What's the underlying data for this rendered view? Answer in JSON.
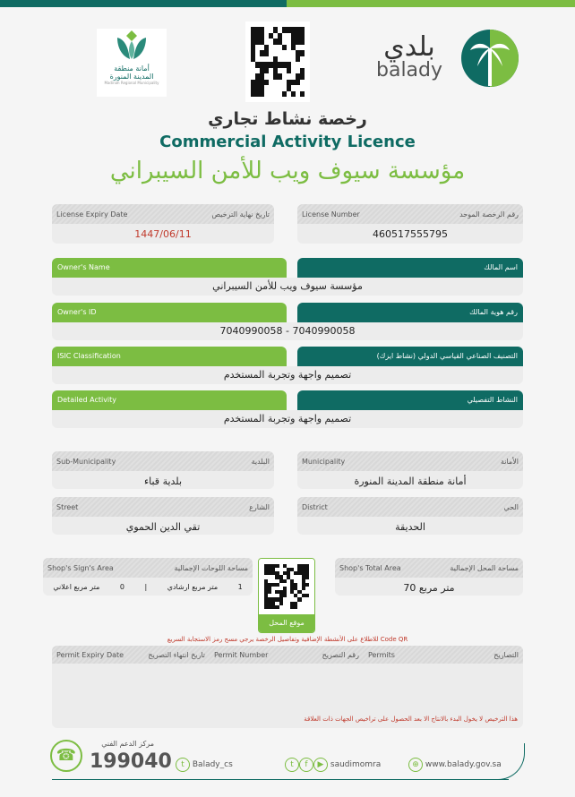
{
  "header": {
    "municipality_logo": {
      "ar_line1": "أمانة منطقة",
      "ar_line2": "المدينة المنورة",
      "en": "Madinah Regional Municipality"
    },
    "balady_logo": {
      "ar": "بلدي",
      "en": "balady"
    }
  },
  "title": {
    "ar": "رخصة نشاط تجاري",
    "en": "Commercial Activity Licence",
    "org": "مؤسسة سيوف ويب للأمن السيبراني"
  },
  "license_expiry": {
    "en": "License Expiry Date",
    "ar": "تاريخ نهاية الترخيص",
    "value": "1447/06/11"
  },
  "license_number": {
    "en": "License Number",
    "ar": "رقم الرخصة الموحد",
    "value": "460517555795"
  },
  "owner_name": {
    "en": "Owner's Name",
    "ar": "اسم المالك",
    "value": "مؤسسة سيوف ويب للأمن السيبراني"
  },
  "owner_id": {
    "en": "Owner's ID",
    "ar": "رقم هوية المالك",
    "value": "7040990058 - 7040990058"
  },
  "isic": {
    "en": "ISIC Classification",
    "ar": "التصنيف الصناعي القياسي الدولي (نشاط ايزك)",
    "value": "تصميم واجهة وتجربة المستخدم"
  },
  "detailed_activity": {
    "en": "Detailed Activity",
    "ar": "النشاط التفصيلي",
    "value": "تصميم واجهة وتجربة المستخدم"
  },
  "sub_municipality": {
    "en": "Sub-Municipality",
    "ar": "البلدية",
    "value": "بلدية قباء"
  },
  "municipality": {
    "en": "Municipality",
    "ar": "الأمانة",
    "value": "أمانة منطقة المدينة المنورة"
  },
  "street": {
    "en": "Street",
    "ar": "الشارع",
    "value": "تقي الدين الحموي"
  },
  "district": {
    "en": "District",
    "ar": "الحي",
    "value": "الحديقة"
  },
  "sign_area": {
    "en": "Shop's Sign's Area",
    "ar": "مساحة اللوحات الإجمالية",
    "guide_value": "1",
    "guide_unit": "متر مربع ارشادي",
    "sep": "|",
    "ad_value": "0",
    "ad_unit": "متر مربع اعلاني"
  },
  "total_area": {
    "en": "Shop's Total Area",
    "ar": "مساحة المحل الإجمالية",
    "value": "70 متر مربع"
  },
  "location_qr_label": "موقع المحل",
  "qr_note": "للاطلاع على الأنشطة الإضافية وتفاصيل الرخصة يرجي مسح رمز الاستجابة السريع Code QR",
  "permits": {
    "expiry_en": "Permit Expiry Date",
    "expiry_ar": "تاريخ انتهاء التصريح",
    "number_en": "Permit Number",
    "number_ar": "رقم التصريح",
    "permits_en": "Permits",
    "permits_ar": "التصاريح"
  },
  "disclaimer": "هذا الترخيص لا يخول البدء بالانتاج الا بعد الحصول على تراخيص الجهات ذات العلاقة",
  "footer": {
    "support_label": "مركز الدعم الفني",
    "support_number": "199040",
    "twitter_cs": "Balady_cs",
    "social": "saudimomra",
    "website": "www.balady.gov.sa"
  },
  "colors": {
    "teal": "#0f6b63",
    "green": "#7cbd42",
    "red": "#c0392b"
  }
}
